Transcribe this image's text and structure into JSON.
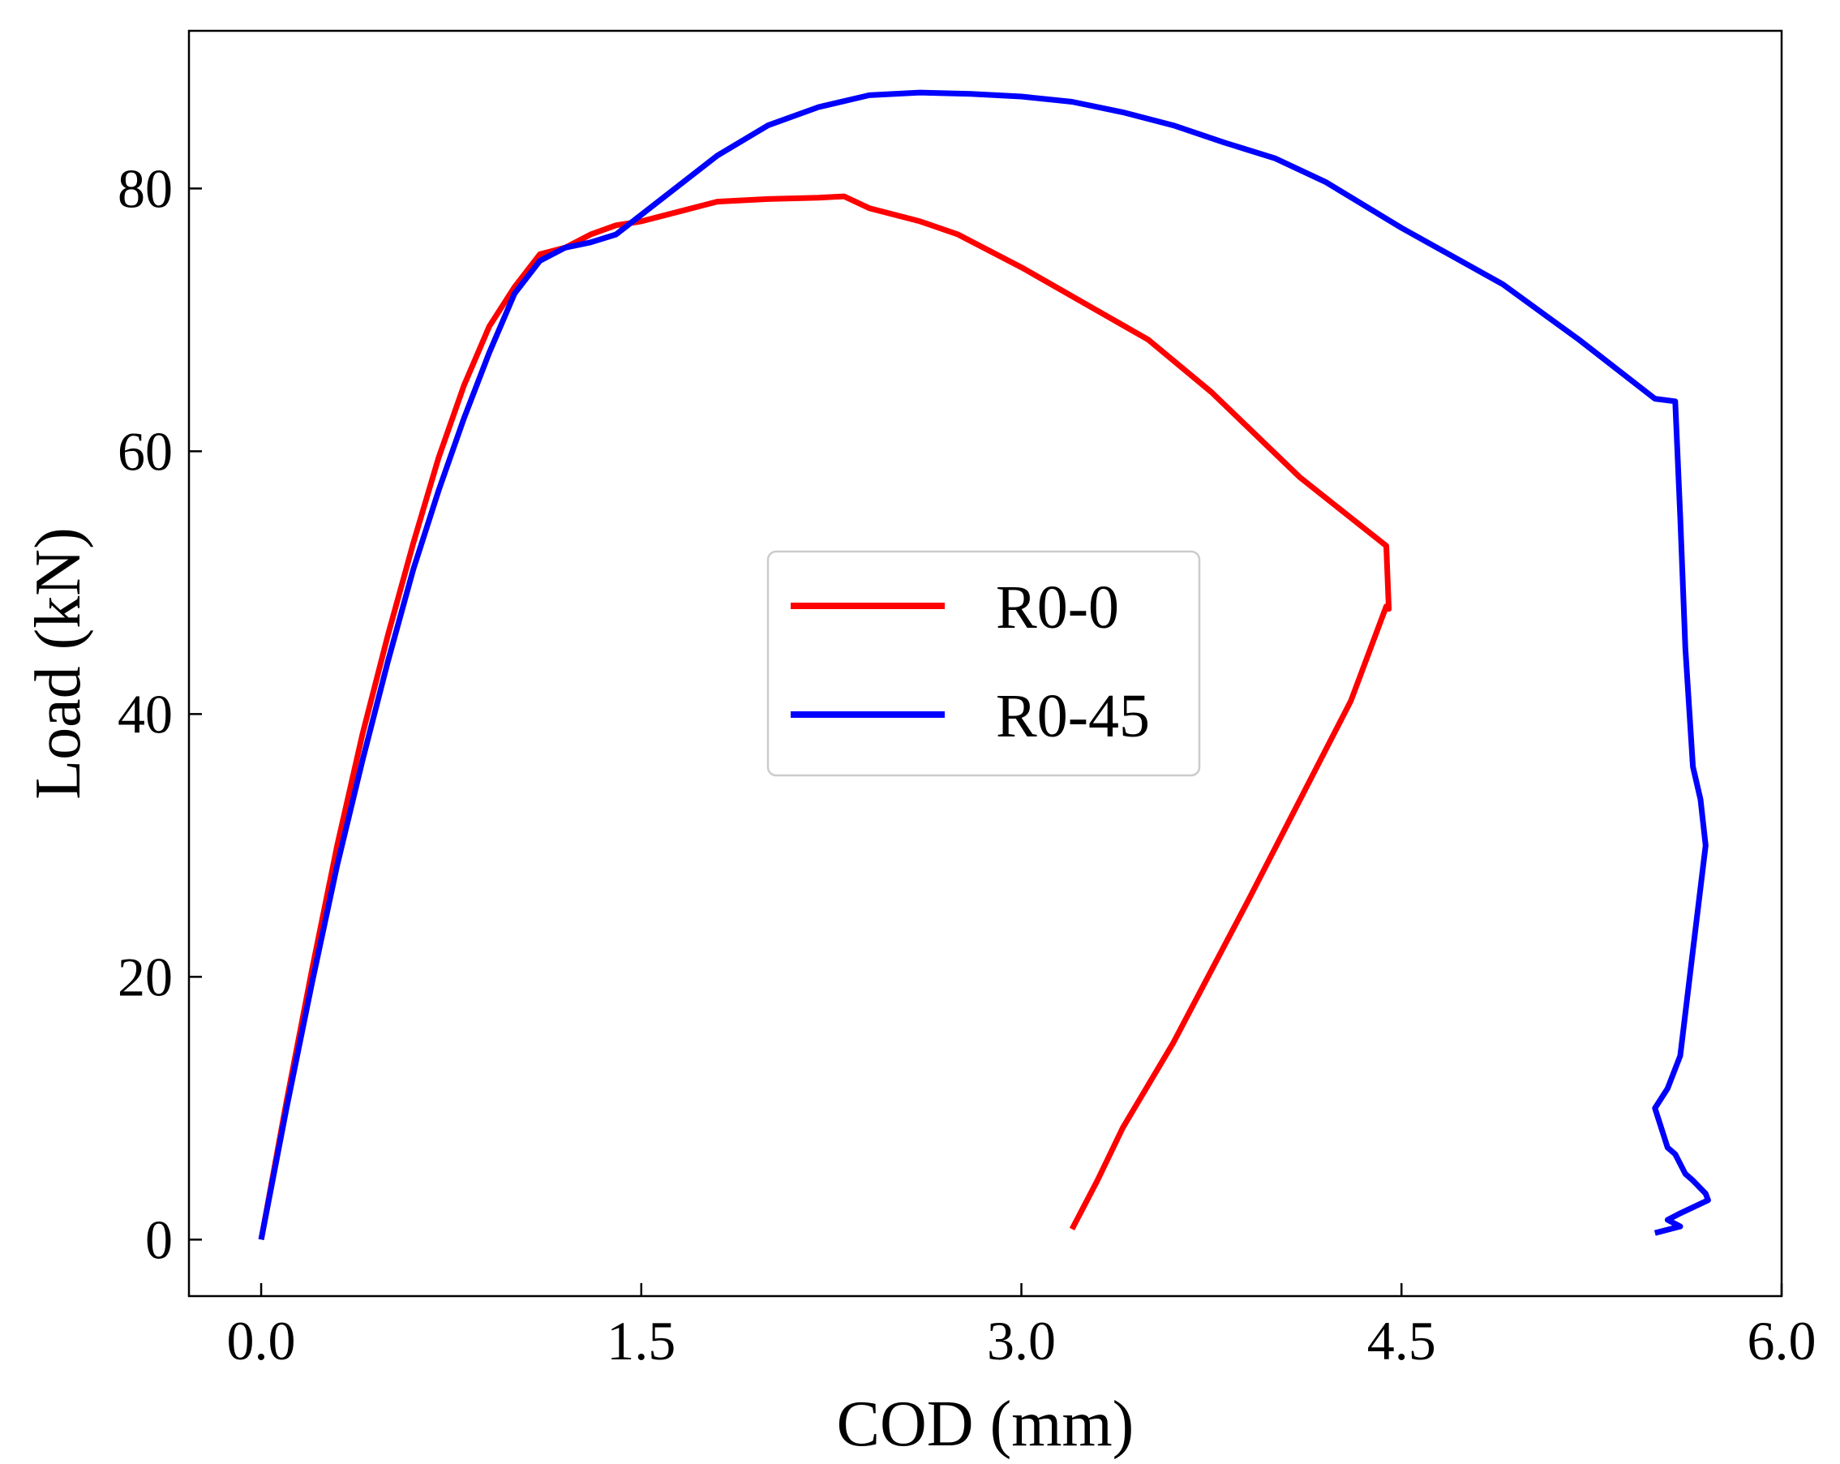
{
  "chart_data": {
    "type": "line",
    "title": "",
    "xlabel": "COD (mm)",
    "ylabel": "Load (kN)",
    "xlim": [
      -0.285,
      6.0
    ],
    "ylim": [
      -4.3,
      92
    ],
    "xticks": [
      0.0,
      1.5,
      3.0,
      4.5,
      6.0
    ],
    "xtick_labels": [
      "0.0",
      "1.5",
      "3.0",
      "4.5",
      "6.0"
    ],
    "yticks": [
      0,
      20,
      40,
      60,
      80
    ],
    "ytick_labels": [
      "0",
      "20",
      "40",
      "60",
      "80"
    ],
    "grid": false,
    "legend_position": "center",
    "series": [
      {
        "name": "R0-0",
        "color": "#ff0000",
        "x": [
          0.0,
          0.1,
          0.2,
          0.3,
          0.4,
          0.5,
          0.6,
          0.7,
          0.8,
          0.9,
          1.0,
          1.1,
          1.2,
          1.3,
          1.4,
          1.5,
          1.6,
          1.8,
          2.0,
          2.2,
          2.3,
          2.4,
          2.6,
          2.75,
          3.0,
          3.5,
          3.75,
          4.1,
          4.44,
          4.45,
          4.44,
          4.3,
          4.1,
          3.9,
          3.75,
          3.6,
          3.4,
          3.3,
          3.2
        ],
        "y": [
          0,
          10.5,
          20.5,
          30,
          38.5,
          46,
          53,
          59.5,
          65,
          69.5,
          72.5,
          75,
          75.5,
          76.5,
          77.2,
          77.5,
          78,
          79,
          79.2,
          79.3,
          79.4,
          78.5,
          77.5,
          76.5,
          74,
          68.5,
          64.5,
          58,
          52.8,
          48,
          48.2,
          41,
          33.5,
          26,
          20.5,
          15,
          8.5,
          4.5,
          0.8
        ]
      },
      {
        "name": "R0-45",
        "color": "#0000ff",
        "x": [
          0.0,
          0.1,
          0.2,
          0.3,
          0.4,
          0.5,
          0.6,
          0.7,
          0.8,
          0.9,
          1.0,
          1.1,
          1.2,
          1.3,
          1.4,
          1.5,
          1.6,
          1.8,
          2.0,
          2.2,
          2.4,
          2.6,
          2.8,
          3.0,
          3.2,
          3.4,
          3.6,
          3.8,
          4.0,
          4.2,
          4.5,
          4.9,
          5.2,
          5.5,
          5.58,
          5.6,
          5.62,
          5.65,
          5.68,
          5.7,
          5.65,
          5.6,
          5.55,
          5.5,
          5.55,
          5.58,
          5.62,
          5.65,
          5.7,
          5.71,
          5.6,
          5.55,
          5.6,
          5.5
        ],
        "y": [
          0,
          10,
          19.5,
          28.5,
          36.5,
          44,
          51,
          57,
          62.5,
          67.5,
          72,
          74.5,
          75.5,
          75.9,
          76.5,
          78,
          79.5,
          82.5,
          84.8,
          86.2,
          87.1,
          87.3,
          87.2,
          87.0,
          86.6,
          85.8,
          84.8,
          83.5,
          82.3,
          80.5,
          77,
          72.7,
          68.5,
          64,
          63.8,
          55,
          45,
          36,
          33.5,
          30,
          22,
          14,
          11.5,
          10,
          7,
          6.5,
          5,
          4.5,
          3.5,
          3,
          2,
          1.5,
          1,
          0.5
        ]
      }
    ]
  }
}
